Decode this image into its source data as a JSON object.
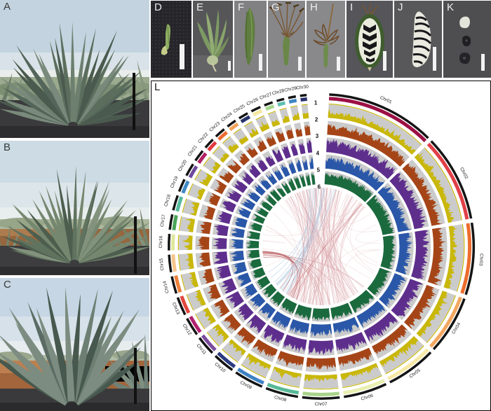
{
  "panels": {
    "A": "A",
    "B": "B",
    "C": "C",
    "D": "D",
    "E": "E",
    "F": "F",
    "G": "G",
    "H": "H",
    "I": "I",
    "J": "J",
    "K": "K",
    "L": "L"
  },
  "chart_data": {
    "type": "circos",
    "track_labels": [
      "1",
      "2",
      "3",
      "4",
      "5",
      "6"
    ],
    "tracks": [
      {
        "label": "1",
        "color": "#c9b70a"
      },
      {
        "label": "2",
        "color": "#a54517"
      },
      {
        "label": "3",
        "color": "#5e2e8d"
      },
      {
        "label": "4",
        "color": "#2a57a8"
      },
      {
        "label": "5",
        "color": "#1a6a3e"
      }
    ],
    "links": {
      "label": "6",
      "colors": [
        "#e5babe",
        "#c0767c",
        "#9ec1dd"
      ]
    },
    "ideogram": {
      "outer_color": "#141414",
      "track_bg": "#cbcbcb"
    },
    "chromosomes": [
      {
        "name": "Chr01",
        "size": 100,
        "color": "#9c1145"
      },
      {
        "name": "Chr02",
        "size": 80,
        "color": "#e04048"
      },
      {
        "name": "Chr03",
        "size": 66,
        "color": "#ed6d2d"
      },
      {
        "name": "Chr04",
        "size": 54,
        "color": "#f3a760"
      },
      {
        "name": "Chr05",
        "size": 46,
        "color": "#f7e9a6"
      },
      {
        "name": "Chr06",
        "size": 40,
        "color": "#e9efb0"
      },
      {
        "name": "Chr07",
        "size": 34,
        "color": "#a9d38a"
      },
      {
        "name": "Chr08",
        "size": 30,
        "color": "#57b996"
      },
      {
        "name": "Chr09",
        "size": 27,
        "color": "#3e82c3"
      },
      {
        "name": "Chr10",
        "size": 20,
        "color": "#2a3b80"
      },
      {
        "name": "Chr11",
        "size": 18,
        "color": "#7a4b9e"
      },
      {
        "name": "Chr12",
        "size": 17,
        "color": "#b2206f"
      },
      {
        "name": "Chr13",
        "size": 17,
        "color": "#e2483f"
      },
      {
        "name": "Chr14",
        "size": 16,
        "color": "#ee7f38"
      },
      {
        "name": "Chr15",
        "size": 16,
        "color": "#f5c48b"
      },
      {
        "name": "Chr16",
        "size": 15,
        "color": "#e0e89e"
      },
      {
        "name": "Chr17",
        "size": 14,
        "color": "#4ba457"
      },
      {
        "name": "Chr18",
        "size": 14,
        "color": "#55bb9c"
      },
      {
        "name": "Chr19",
        "size": 12,
        "color": "#4089c6"
      },
      {
        "name": "Chr20",
        "size": 12,
        "color": "#6d4a9c"
      },
      {
        "name": "Chr21",
        "size": 11,
        "color": "#b11f62"
      },
      {
        "name": "Chr22",
        "size": 10,
        "color": "#e03b40"
      },
      {
        "name": "Chr23",
        "size": 10,
        "color": "#ec6c33"
      },
      {
        "name": "Chr24",
        "size": 9,
        "color": "#f2a259"
      },
      {
        "name": "Chr25",
        "size": 9,
        "color": "#273469"
      },
      {
        "name": "Chr26",
        "size": 9,
        "color": "#f6e9a4"
      },
      {
        "name": "Chr27",
        "size": 8,
        "color": "#a6d68c"
      },
      {
        "name": "Chr28",
        "size": 7,
        "color": "#5bbfae"
      },
      {
        "name": "Chr29",
        "size": 7,
        "color": "#3f87c4"
      },
      {
        "name": "Chr30",
        "size": 6,
        "color": "#28306b"
      }
    ]
  }
}
